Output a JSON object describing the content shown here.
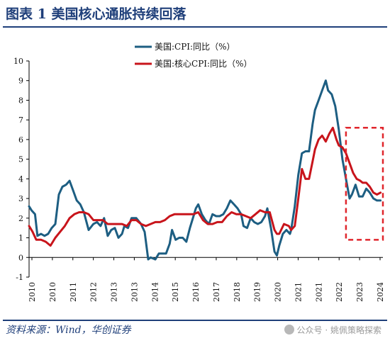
{
  "title": "图表 1 美国核心通胀持续回落",
  "source": "资料来源：Wind，华创证券",
  "watermark": {
    "text": "公众号 · 姚佩策略探索",
    "icon": "wechat-icon"
  },
  "colors": {
    "cpi": "#1d5e82",
    "core": "#c8141b",
    "highlight": "#e0262c",
    "rule": "#1f3f7a"
  },
  "chart_data": {
    "type": "line",
    "ylim": [
      -1,
      10
    ],
    "yticks": [
      "-1",
      "0",
      "1",
      "2",
      "3",
      "4",
      "5",
      "6",
      "7",
      "8",
      "9",
      "10"
    ],
    "xlim": [
      2010,
      2024.85
    ],
    "xticks": [
      "2010",
      "2010",
      "2011",
      "2012",
      "2013",
      "2013",
      "2014",
      "2015",
      "2016",
      "2017",
      "2018",
      "2019",
      "2020",
      "2021",
      "2021",
      "2022",
      "2023",
      "2024"
    ],
    "legend": "top-left",
    "series": [
      {
        "name": "美国:CPI:同比（%）",
        "x": [
          2010.0,
          2010.1,
          2010.25,
          2010.35,
          2010.5,
          2010.65,
          2010.8,
          2010.95,
          2011.1,
          2011.25,
          2011.4,
          2011.55,
          2011.7,
          2011.85,
          2012.0,
          2012.15,
          2012.3,
          2012.5,
          2012.7,
          2012.85,
          2013.0,
          2013.15,
          2013.3,
          2013.45,
          2013.6,
          2013.75,
          2013.9,
          2014.0,
          2014.15,
          2014.3,
          2014.5,
          2014.7,
          2014.85,
          2015.0,
          2015.1,
          2015.3,
          2015.45,
          2015.6,
          2015.75,
          2015.9,
          2016.0,
          2016.15,
          2016.3,
          2016.45,
          2016.6,
          2016.75,
          2016.9,
          2017.0,
          2017.1,
          2017.25,
          2017.4,
          2017.55,
          2017.7,
          2017.85,
          2018.0,
          2018.15,
          2018.3,
          2018.45,
          2018.6,
          2018.75,
          2018.9,
          2019.0,
          2019.15,
          2019.3,
          2019.45,
          2019.6,
          2019.75,
          2019.9,
          2020.0,
          2020.15,
          2020.3,
          2020.4,
          2020.5,
          2020.65,
          2020.8,
          2020.95,
          2021.0,
          2021.15,
          2021.3,
          2021.45,
          2021.6,
          2021.75,
          2021.9,
          2022.0,
          2022.15,
          2022.3,
          2022.45,
          2022.55,
          2022.7,
          2022.85,
          2023.0,
          2023.15,
          2023.3,
          2023.45,
          2023.55,
          2023.7,
          2023.85,
          2024.0,
          2024.15,
          2024.3,
          2024.45,
          2024.6,
          2024.75
        ],
        "values": [
          2.6,
          2.4,
          2.2,
          1.1,
          1.2,
          1.1,
          1.2,
          1.5,
          1.7,
          3.2,
          3.6,
          3.7,
          3.9,
          3.4,
          2.9,
          2.7,
          2.3,
          1.4,
          1.7,
          1.8,
          1.6,
          2.0,
          1.1,
          1.4,
          1.5,
          1.0,
          1.2,
          1.6,
          1.5,
          2.0,
          2.0,
          1.7,
          1.3,
          -0.1,
          0.0,
          -0.1,
          0.2,
          0.2,
          0.2,
          0.7,
          1.4,
          0.9,
          1.0,
          1.0,
          0.8,
          1.5,
          2.1,
          2.5,
          2.7,
          2.2,
          1.9,
          1.7,
          2.2,
          2.1,
          2.1,
          2.2,
          2.5,
          2.9,
          2.7,
          2.5,
          2.2,
          1.6,
          1.5,
          2.0,
          1.8,
          1.7,
          1.8,
          2.1,
          2.5,
          1.5,
          0.3,
          0.1,
          0.6,
          1.2,
          1.4,
          1.2,
          1.4,
          2.6,
          4.2,
          5.3,
          5.4,
          5.4,
          6.8,
          7.5,
          8.0,
          8.5,
          9.0,
          8.5,
          8.3,
          7.7,
          6.5,
          5.0,
          4.0,
          3.0,
          3.2,
          3.7,
          3.1,
          3.1,
          3.5,
          3.3,
          3.0,
          2.9,
          2.9
        ]
      },
      {
        "name": "美国:核心CPI:同比（%）",
        "x": [
          2010.0,
          2010.15,
          2010.3,
          2010.5,
          2010.7,
          2010.9,
          2011.1,
          2011.3,
          2011.5,
          2011.7,
          2011.9,
          2012.1,
          2012.3,
          2012.5,
          2012.7,
          2012.9,
          2013.1,
          2013.3,
          2013.5,
          2013.7,
          2013.9,
          2014.1,
          2014.3,
          2014.5,
          2014.7,
          2014.9,
          2015.1,
          2015.3,
          2015.5,
          2015.7,
          2015.9,
          2016.1,
          2016.3,
          2016.5,
          2016.7,
          2016.9,
          2017.1,
          2017.3,
          2017.5,
          2017.7,
          2017.9,
          2018.1,
          2018.3,
          2018.5,
          2018.7,
          2018.9,
          2019.1,
          2019.3,
          2019.5,
          2019.7,
          2019.9,
          2020.1,
          2020.3,
          2020.4,
          2020.5,
          2020.7,
          2020.9,
          2021.0,
          2021.15,
          2021.3,
          2021.45,
          2021.6,
          2021.75,
          2021.9,
          2022.0,
          2022.15,
          2022.3,
          2022.45,
          2022.6,
          2022.75,
          2022.9,
          2023.0,
          2023.15,
          2023.3,
          2023.45,
          2023.6,
          2023.75,
          2023.9,
          2024.0,
          2024.15,
          2024.3,
          2024.45,
          2024.6,
          2024.75
        ],
        "values": [
          1.6,
          1.3,
          0.9,
          0.9,
          0.8,
          0.6,
          1.0,
          1.3,
          1.6,
          2.0,
          2.2,
          2.3,
          2.3,
          2.2,
          1.9,
          1.9,
          1.9,
          1.7,
          1.7,
          1.7,
          1.7,
          1.6,
          1.9,
          1.9,
          1.7,
          1.6,
          1.7,
          1.8,
          1.8,
          1.9,
          2.1,
          2.2,
          2.2,
          2.2,
          2.2,
          2.2,
          2.3,
          1.9,
          1.7,
          1.7,
          1.8,
          1.8,
          2.1,
          2.3,
          2.2,
          2.2,
          2.1,
          2.0,
          2.2,
          2.4,
          2.3,
          2.3,
          1.4,
          1.2,
          1.2,
          1.7,
          1.6,
          1.4,
          1.6,
          3.0,
          4.5,
          4.0,
          4.0,
          4.9,
          5.5,
          6.0,
          6.2,
          5.9,
          6.3,
          6.6,
          6.0,
          5.7,
          5.6,
          5.3,
          4.8,
          4.3,
          4.0,
          3.9,
          3.8,
          3.8,
          3.6,
          3.3,
          3.2,
          3.3
        ]
      }
    ],
    "highlight": {
      "x0": 2023.3,
      "x1": 2024.85,
      "y0": 0.9,
      "y1": 6.6
    }
  }
}
